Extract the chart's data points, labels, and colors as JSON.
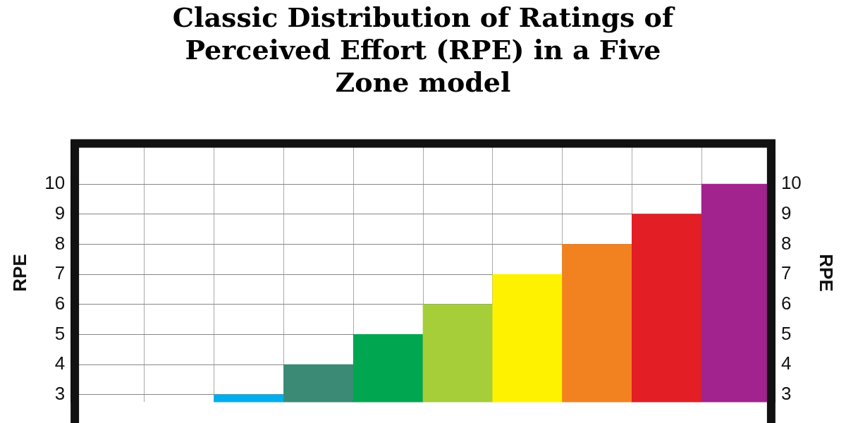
{
  "chart_data": {
    "type": "bar",
    "title": "Classic Distribution of Ratings of Perceived Effort (RPE) in a Five Zone model",
    "ylabel": "RPE",
    "y2label": "RPE",
    "categories": [
      null,
      null,
      null,
      null,
      null,
      null,
      null,
      null,
      null,
      null
    ],
    "values": [
      null,
      null,
      3,
      4,
      5,
      6,
      7,
      8,
      9,
      10
    ],
    "colors": [
      "#00aeef",
      "#00aeef",
      "#00aeef",
      "#3a8a76",
      "#00a650",
      "#a6ce39",
      "#fff200",
      "#f28220",
      "#e31e24",
      "#a2228e"
    ],
    "ylim": [
      2.75,
      11.35
    ],
    "yticks": [
      3,
      4,
      5,
      6,
      7,
      8,
      9,
      10
    ],
    "y2lim": [
      2.75,
      11.35
    ],
    "y2ticks": [
      3,
      4,
      5,
      6,
      7,
      8,
      9,
      10
    ],
    "grid": true,
    "legend": false
  }
}
